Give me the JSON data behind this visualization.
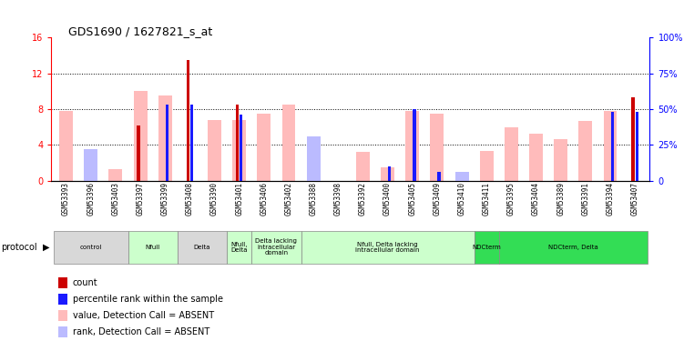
{
  "title": "GDS1690 / 1627821_s_at",
  "samples": [
    "GSM53393",
    "GSM53396",
    "GSM53403",
    "GSM53397",
    "GSM53399",
    "GSM53408",
    "GSM53390",
    "GSM53401",
    "GSM53406",
    "GSM53402",
    "GSM53388",
    "GSM53398",
    "GSM53392",
    "GSM53400",
    "GSM53405",
    "GSM53409",
    "GSM53410",
    "GSM53411",
    "GSM53395",
    "GSM53404",
    "GSM53389",
    "GSM53391",
    "GSM53394",
    "GSM53407"
  ],
  "count_values": [
    0,
    0,
    0,
    6.2,
    0,
    13.5,
    0,
    8.5,
    0,
    0,
    0,
    0,
    0,
    0,
    0,
    0,
    0,
    0,
    0,
    0,
    0,
    0,
    0,
    9.3
  ],
  "rank_values_pct": [
    0,
    0,
    0,
    0,
    53,
    53,
    0,
    46,
    0,
    0,
    0,
    0,
    0,
    10,
    50,
    6,
    0,
    0,
    0,
    0,
    0,
    0,
    48,
    48
  ],
  "value_absent": [
    7.8,
    2.6,
    1.3,
    10.0,
    9.5,
    0,
    6.8,
    6.8,
    7.5,
    8.5,
    0,
    0,
    3.2,
    1.5,
    7.8,
    7.5,
    0,
    3.3,
    6.0,
    5.3,
    4.6,
    6.7,
    7.8,
    0
  ],
  "rank_absent_pct": [
    0,
    22,
    0,
    0,
    0,
    0,
    0,
    0,
    0,
    0,
    31,
    0,
    0,
    0,
    0,
    0,
    6,
    0,
    0,
    0,
    0,
    0,
    0,
    0
  ],
  "ylim_left": [
    0,
    16
  ],
  "ylim_right": [
    0,
    100
  ],
  "yticks_left": [
    0,
    4,
    8,
    12,
    16
  ],
  "yticks_right": [
    0,
    25,
    50,
    75,
    100
  ],
  "color_count": "#cc0000",
  "color_rank": "#1a1aff",
  "color_value_absent": "#ffbbbb",
  "color_rank_absent": "#bbbbff",
  "groups": [
    {
      "label": "control",
      "start": 0,
      "end": 3,
      "color": "#d8d8d8"
    },
    {
      "label": "Nfull",
      "start": 3,
      "end": 5,
      "color": "#ccffcc"
    },
    {
      "label": "Delta",
      "start": 5,
      "end": 7,
      "color": "#d8d8d8"
    },
    {
      "label": "Nfull,\nDelta",
      "start": 7,
      "end": 8,
      "color": "#ccffcc"
    },
    {
      "label": "Delta lacking\nintracellular\ndomain",
      "start": 8,
      "end": 10,
      "color": "#ccffcc"
    },
    {
      "label": "Nfull, Delta lacking\nintracellular domain",
      "start": 10,
      "end": 17,
      "color": "#ccffcc"
    },
    {
      "label": "NDCterm",
      "start": 17,
      "end": 18,
      "color": "#33dd55"
    },
    {
      "label": "NDCterm, Delta",
      "start": 18,
      "end": 24,
      "color": "#33dd55"
    }
  ],
  "legend_items": [
    {
      "label": "count",
      "color": "#cc0000"
    },
    {
      "label": "percentile rank within the sample",
      "color": "#1a1aff"
    },
    {
      "label": "value, Detection Call = ABSENT",
      "color": "#ffbbbb"
    },
    {
      "label": "rank, Detection Call = ABSENT",
      "color": "#bbbbff"
    }
  ]
}
